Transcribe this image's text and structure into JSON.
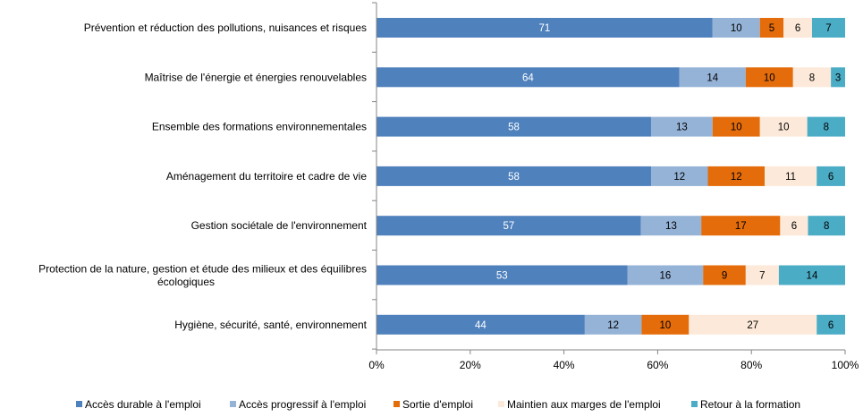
{
  "chart_data": {
    "type": "bar",
    "orientation": "horizontal",
    "stacked": true,
    "percent_stacked": true,
    "categories": [
      [
        "Prévention et réduction des pollutions, nuisances et risques"
      ],
      [
        "Maîtrise de l'énergie et énergies renouvelables"
      ],
      [
        "Ensemble des formations environnementales"
      ],
      [
        "Aménagement du territoire et cadre de vie"
      ],
      [
        "Gestion sociétale de l'environnement"
      ],
      [
        "Protection de la nature, gestion et étude des milieux et des équilibres",
        "écologiques"
      ],
      [
        "Hygiène, sécurité, santé, environnement"
      ]
    ],
    "series": [
      {
        "name": "Accès durable à l'emploi",
        "color": "#4f81bd",
        "label_color": "#ffffff",
        "values": [
          71,
          64,
          58,
          58,
          57,
          53,
          44
        ]
      },
      {
        "name": "Accès progressif à l'emploi",
        "color": "#95b3d7",
        "label_color": "#000000",
        "values": [
          10,
          14,
          13,
          12,
          13,
          16,
          12
        ]
      },
      {
        "name": "Sortie d'emploi",
        "color": "#e46c0a",
        "label_color": "#000000",
        "values": [
          5,
          10,
          10,
          12,
          17,
          9,
          10
        ]
      },
      {
        "name": "Maintien aux marges de l'emploi",
        "color": "#fde9d9",
        "label_color": "#000000",
        "values": [
          6,
          8,
          10,
          11,
          6,
          7,
          27
        ]
      },
      {
        "name": "Retour à la formation",
        "color": "#4bacc6",
        "label_color": "#000000",
        "values": [
          7,
          3,
          8,
          6,
          8,
          14,
          6
        ]
      }
    ],
    "xlim": [
      0,
      100
    ],
    "xticks": [
      0,
      20,
      40,
      60,
      80,
      100
    ],
    "xtick_labels": [
      "0%",
      "20%",
      "40%",
      "60%",
      "80%",
      "100%"
    ],
    "grid": false,
    "legend_position": "bottom"
  }
}
